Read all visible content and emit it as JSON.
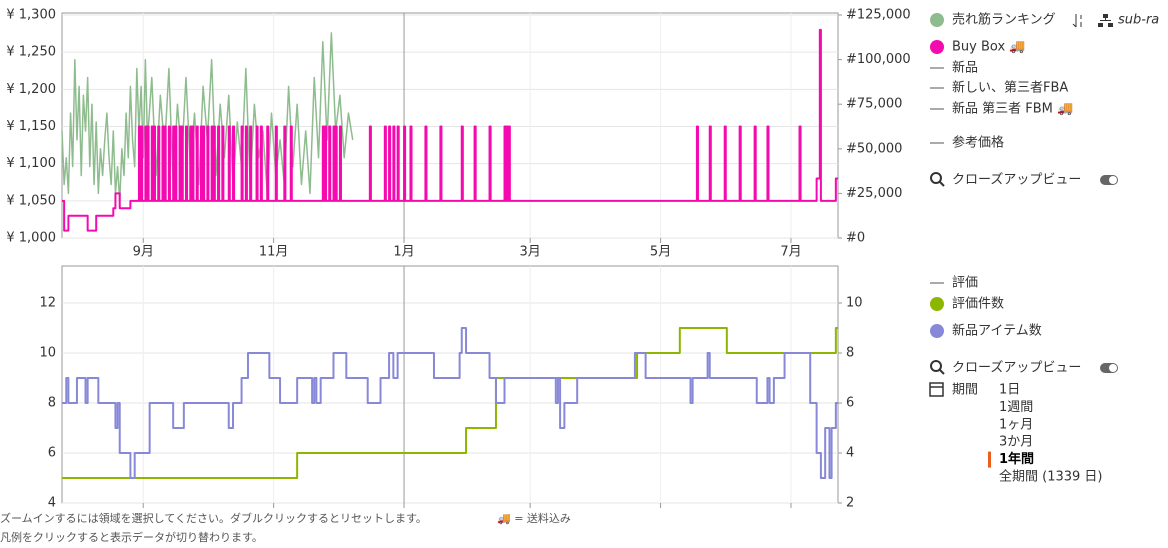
{
  "chart_data": [
    {
      "type": "line",
      "xlim": [
        0,
        363
      ],
      "xticks": [
        {
          "value": 38,
          "label": "9月"
        },
        {
          "value": 99,
          "label": "11月"
        },
        {
          "value": 160,
          "label": "1月"
        },
        {
          "value": 219,
          "label": "3月"
        },
        {
          "value": 280,
          "label": "5月"
        },
        {
          "value": 341,
          "label": "7月"
        }
      ],
      "ylim": [
        1000,
        1300
      ],
      "yticks": [
        {
          "value": 1000,
          "label": "¥ 1,000"
        },
        {
          "value": 1050,
          "label": "¥ 1,050"
        },
        {
          "value": 1100,
          "label": "¥ 1,100"
        },
        {
          "value": 1150,
          "label": "¥ 1,150"
        },
        {
          "value": 1200,
          "label": "¥ 1,200"
        },
        {
          "value": 1250,
          "label": "¥ 1,250"
        },
        {
          "value": 1300,
          "label": "¥ 1,300"
        }
      ],
      "y2lim": [
        0,
        125000
      ],
      "y2ticks": [
        {
          "value": 0,
          "label": "#0"
        },
        {
          "value": 25000,
          "label": "#25,000"
        },
        {
          "value": 50000,
          "label": "#50,000"
        },
        {
          "value": 75000,
          "label": "#75,000"
        },
        {
          "value": 100000,
          "label": "#100,000"
        },
        {
          "value": 125000,
          "label": "#125,000"
        }
      ],
      "grid": true,
      "series": [
        {
          "name": "売れ筋ランキング",
          "color": "#8fbc8f",
          "axis": "y2",
          "step": false,
          "x": [
            0,
            1,
            2,
            3,
            4,
            5,
            6,
            7,
            8,
            9,
            10,
            11,
            12,
            13,
            14,
            15,
            16,
            17,
            18,
            19,
            20,
            21,
            22,
            23,
            24,
            25,
            26,
            27,
            28,
            29,
            30,
            31,
            32,
            33,
            34,
            35,
            36,
            37,
            38,
            39,
            40,
            42,
            44,
            46,
            48,
            50,
            52,
            54,
            56,
            58,
            60,
            62,
            64,
            66,
            68,
            70,
            72,
            74,
            76,
            78,
            80,
            82,
            84,
            86,
            88,
            90,
            92,
            94,
            96,
            98,
            100,
            102,
            104,
            106,
            108,
            110,
            112,
            114,
            116,
            118,
            120,
            122,
            124,
            126,
            128,
            130,
            132,
            134,
            136
          ],
          "values": [
            60000,
            30000,
            45000,
            25000,
            70000,
            40000,
            100000,
            55000,
            85000,
            35000,
            80000,
            60000,
            90000,
            40000,
            75000,
            30000,
            65000,
            25000,
            50000,
            35000,
            55000,
            70000,
            45000,
            30000,
            60000,
            25000,
            40000,
            20000,
            50000,
            35000,
            70000,
            45000,
            85000,
            55000,
            40000,
            95000,
            60000,
            85000,
            45000,
            100000,
            55000,
            90000,
            35000,
            80000,
            50000,
            95000,
            30000,
            75000,
            45000,
            90000,
            40000,
            70000,
            30000,
            85000,
            55000,
            100000,
            35000,
            75000,
            45000,
            80000,
            30000,
            65000,
            40000,
            95000,
            30000,
            75000,
            45000,
            60000,
            25000,
            70000,
            35000,
            55000,
            30000,
            85000,
            40000,
            75000,
            30000,
            60000,
            25000,
            90000,
            45000,
            110000,
            55000,
            115000,
            60000,
            80000,
            45000,
            70000,
            55000
          ]
        },
        {
          "name": "Buy Box 🚚",
          "color": "#f50ab0",
          "axis": "y",
          "step": true,
          "x": [
            0,
            1,
            3,
            12,
            16,
            24,
            25,
            27,
            32,
            36,
            36.5,
            37,
            37.5,
            39,
            39.5,
            40,
            40.5,
            42,
            42.5,
            43,
            43.5,
            45,
            45.5,
            47,
            47.5,
            48,
            48.5,
            50,
            50.5,
            52,
            52.5,
            53,
            53.5,
            55,
            55.5,
            56,
            56.5,
            58,
            58.5,
            60,
            60.5,
            61,
            61.5,
            63,
            63.5,
            65,
            65.5,
            66,
            66.5,
            68,
            68.5,
            70,
            70.5,
            71,
            71.5,
            73,
            73.5,
            75,
            75.5,
            78,
            78.5,
            80,
            80.5,
            84,
            84.5,
            86,
            86.5,
            88,
            88.5,
            91,
            91.5,
            93,
            93.5,
            96,
            96.5,
            100,
            100.5,
            104,
            104.5,
            107,
            107.5,
            122,
            122.5,
            123,
            123.5,
            125,
            125.5,
            127,
            127.5,
            128,
            128.5,
            130,
            130.5,
            144,
            144.5,
            151,
            151.5,
            153,
            153.5,
            155,
            155.5,
            157,
            157.5,
            160,
            160.5,
            163,
            163.5,
            170,
            170.5,
            177,
            177.5,
            187,
            187.5,
            193,
            193.5,
            200,
            200.5,
            207,
            207.5,
            208,
            208.5,
            209,
            209.5,
            297,
            297.5,
            303,
            303.5,
            310,
            310.5,
            317,
            317.5,
            324,
            324.5,
            330,
            330.5,
            345,
            345.5,
            353,
            354.5,
            355,
            362
          ],
          "values": [
            1050,
            1010,
            1030,
            1010,
            1030,
            1040,
            1060,
            1040,
            1050,
            1150,
            1050,
            1150,
            1050,
            1150,
            1050,
            1150,
            1050,
            1150,
            1050,
            1150,
            1050,
            1150,
            1050,
            1150,
            1050,
            1150,
            1050,
            1150,
            1050,
            1150,
            1050,
            1150,
            1050,
            1150,
            1050,
            1150,
            1050,
            1150,
            1050,
            1150,
            1050,
            1150,
            1050,
            1150,
            1050,
            1150,
            1050,
            1150,
            1050,
            1150,
            1050,
            1150,
            1050,
            1150,
            1050,
            1150,
            1050,
            1150,
            1050,
            1150,
            1050,
            1150,
            1050,
            1150,
            1050,
            1150,
            1050,
            1150,
            1050,
            1150,
            1050,
            1150,
            1050,
            1150,
            1050,
            1150,
            1050,
            1150,
            1050,
            1150,
            1050,
            1150,
            1050,
            1150,
            1050,
            1150,
            1050,
            1150,
            1050,
            1150,
            1050,
            1150,
            1050,
            1150,
            1050,
            1150,
            1050,
            1150,
            1050,
            1150,
            1050,
            1150,
            1050,
            1150,
            1050,
            1150,
            1050,
            1150,
            1050,
            1150,
            1050,
            1150,
            1050,
            1150,
            1050,
            1150,
            1050,
            1150,
            1050,
            1150,
            1050,
            1150,
            1050,
            1150,
            1050,
            1150,
            1050,
            1150,
            1050,
            1150,
            1050,
            1150,
            1050,
            1150,
            1050,
            1150,
            1050,
            1080,
            1280,
            1050,
            1080
          ]
        }
      ],
      "legend_extra": [
        "新品",
        "新しい、第三者FBA",
        "新品 第三者 FBM 🚚",
        "参考価格"
      ],
      "ranking_category": "sub-ra"
    },
    {
      "type": "line",
      "xlim": [
        0,
        363
      ],
      "xticks": [
        38,
        99,
        160,
        219,
        280,
        341
      ],
      "ylim": [
        4,
        13.4
      ],
      "yticks": [
        4,
        6,
        8,
        10,
        12
      ],
      "y2lim": [
        2,
        11.4
      ],
      "y2ticks": [
        2,
        4,
        6,
        8,
        10
      ],
      "grid": true,
      "series": [
        {
          "name": "評価件数",
          "color": "#8db600",
          "axis": "y2",
          "step": true,
          "x": [
            0,
            110,
            189,
            203,
            269,
            289,
            311,
            362
          ],
          "values": [
            3,
            4,
            5,
            7,
            8,
            9,
            8,
            9
          ]
        },
        {
          "name": "新品アイテム数",
          "color": "#8888d8",
          "axis": "y",
          "step": true,
          "x": [
            0,
            2,
            3,
            7,
            11,
            12,
            17,
            25,
            26,
            27,
            32,
            34,
            41,
            52,
            57,
            78,
            80,
            84,
            87,
            97,
            102,
            110,
            117,
            118,
            119,
            121,
            127,
            133,
            143,
            149,
            153,
            155,
            157,
            174,
            186,
            187,
            189,
            200,
            203,
            207,
            231,
            232,
            233,
            235,
            241,
            268,
            273,
            294,
            295,
            302,
            303,
            325,
            330,
            331,
            333,
            338,
            350,
            353,
            355,
            357,
            359,
            360,
            362
          ],
          "values": [
            8,
            9,
            8,
            9,
            8,
            9,
            8,
            7,
            8,
            6,
            5,
            6,
            8,
            7,
            8,
            7,
            8,
            9,
            10,
            9,
            8,
            9,
            8,
            9,
            8,
            9,
            10,
            9,
            8,
            9,
            10,
            9,
            10,
            9,
            10,
            11,
            10,
            9,
            8,
            9,
            8,
            9,
            7,
            8,
            9,
            10,
            9,
            8,
            9,
            10,
            9,
            8,
            9,
            8,
            9,
            10,
            8,
            6,
            5,
            7,
            5,
            7,
            8
          ]
        }
      ],
      "legend_extra": [
        "評価"
      ]
    }
  ],
  "panel": {
    "closeup": "クローズアップビュー",
    "period_label": "期間",
    "periods": [
      "1日",
      "1週間",
      "1ヶ月",
      "3か月",
      "1年間",
      "全期間 (1339 日)"
    ],
    "selected_period": 4
  },
  "footer": {
    "hint": "ズームインするには領域を選択してください。ダブルクリックするとリセットします。",
    "shipping": "🚚 = 送料込み",
    "legend_hint": "凡例をクリックすると表示データが切り替わります。"
  }
}
